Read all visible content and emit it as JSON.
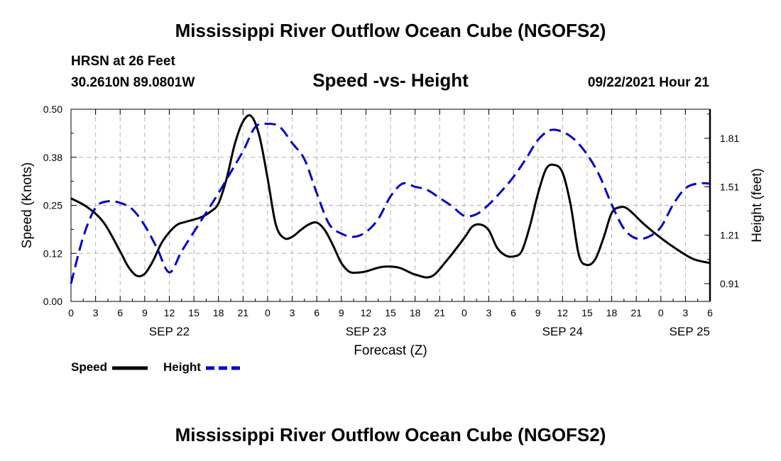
{
  "header": {
    "title": "Mississippi River Outflow Ocean Cube (NGOFS2)",
    "station": "HRSN at 26 Feet",
    "coords": "30.2610N  89.0801W",
    "subtitle": "Speed -vs- Height",
    "datetime": "09/22/2021 Hour 21"
  },
  "footer": {
    "title": "Mississippi River Outflow Ocean Cube (NGOFS2)"
  },
  "legend": {
    "speed_label": "Speed",
    "height_label": "Height"
  },
  "colors": {
    "speed": "#000000",
    "height": "#0000cc",
    "grid": "#b0b0b0"
  },
  "chart_data": {
    "type": "line",
    "title": "Speed -vs- Height",
    "xlabel": "Forecast (Z)",
    "ylabel": "Speed (Knots)",
    "y2label": "Height (feet)",
    "x_ticks": [
      0,
      3,
      6,
      9,
      12,
      15,
      18,
      21,
      24,
      27,
      30,
      33,
      36,
      39,
      42,
      45,
      48,
      51,
      54,
      57,
      60,
      63,
      66,
      69,
      72,
      75,
      78
    ],
    "x_tick_labels": [
      "0",
      "3",
      "6",
      "9",
      "12",
      "15",
      "18",
      "21",
      "0",
      "3",
      "6",
      "9",
      "12",
      "15",
      "18",
      "21",
      "0",
      "3",
      "6",
      "9",
      "12",
      "15",
      "18",
      "21",
      "0",
      "3",
      "6"
    ],
    "date_labels": [
      {
        "x": 12,
        "label": "SEP 22"
      },
      {
        "x": 36,
        "label": "SEP 23"
      },
      {
        "x": 60,
        "label": "SEP 24"
      },
      {
        "x": 78,
        "label": "SEP 25"
      }
    ],
    "xlim": [
      0,
      78
    ],
    "ylim": [
      0,
      0.5
    ],
    "y_ticks": [
      0.0,
      0.125,
      0.25,
      0.375,
      0.5
    ],
    "y_tick_labels": [
      "0.00",
      "0.12",
      "0.25",
      "0.38",
      "0.50"
    ],
    "y2lim": [
      0.8,
      1.99
    ],
    "y2_ticks": [
      0.91,
      1.21,
      1.51,
      1.81
    ],
    "y2_tick_labels": [
      "0.91",
      "1.21",
      "1.51",
      "1.81"
    ],
    "series": [
      {
        "name": "Speed",
        "axis": "left",
        "style": "solid",
        "x": [
          0,
          2,
          4,
          6,
          7,
          8,
          9,
          10,
          11,
          12,
          13,
          14,
          15,
          16,
          17,
          18,
          19,
          20,
          21,
          22,
          23,
          24,
          25,
          26,
          27,
          28,
          29,
          30,
          31,
          32,
          33,
          34,
          35,
          36,
          38,
          40,
          42,
          44,
          46,
          48,
          49,
          50,
          51,
          52,
          53,
          54,
          55,
          56,
          57,
          58,
          59,
          60,
          61,
          62,
          63,
          64,
          65,
          66,
          67,
          68,
          70,
          72,
          74,
          76,
          78
        ],
        "values": [
          0.268,
          0.245,
          0.205,
          0.13,
          0.09,
          0.067,
          0.072,
          0.105,
          0.15,
          0.18,
          0.2,
          0.207,
          0.213,
          0.22,
          0.233,
          0.255,
          0.32,
          0.41,
          0.468,
          0.482,
          0.43,
          0.32,
          0.2,
          0.165,
          0.168,
          0.185,
          0.2,
          0.205,
          0.185,
          0.145,
          0.1,
          0.077,
          0.075,
          0.078,
          0.09,
          0.088,
          0.07,
          0.065,
          0.11,
          0.165,
          0.195,
          0.2,
          0.185,
          0.14,
          0.12,
          0.117,
          0.13,
          0.195,
          0.28,
          0.345,
          0.355,
          0.335,
          0.25,
          0.12,
          0.095,
          0.11,
          0.165,
          0.23,
          0.245,
          0.24,
          0.2,
          0.165,
          0.135,
          0.11,
          0.1
        ]
      },
      {
        "name": "Height",
        "axis": "right",
        "style": "dashed",
        "x": [
          0,
          1.5,
          3,
          4.5,
          6,
          7.5,
          9,
          10.5,
          12,
          13.5,
          15,
          16.5,
          18,
          19.5,
          21,
          22.5,
          24,
          25.5,
          27,
          28.5,
          30,
          31.5,
          33,
          34.5,
          36,
          37.5,
          39,
          40.5,
          42,
          43.5,
          45,
          46.5,
          48,
          49.5,
          51,
          52.5,
          54,
          55.5,
          57,
          58.5,
          60,
          61.5,
          63,
          64.5,
          66,
          67.5,
          69,
          70.5,
          72,
          73.5,
          75,
          76.5,
          78
        ],
        "values": [
          0.91,
          1.2,
          1.38,
          1.42,
          1.41,
          1.37,
          1.27,
          1.13,
          0.98,
          1.11,
          1.23,
          1.35,
          1.47,
          1.6,
          1.73,
          1.88,
          1.9,
          1.88,
          1.78,
          1.68,
          1.47,
          1.28,
          1.22,
          1.2,
          1.23,
          1.31,
          1.45,
          1.53,
          1.51,
          1.49,
          1.44,
          1.39,
          1.33,
          1.34,
          1.4,
          1.48,
          1.57,
          1.68,
          1.8,
          1.86,
          1.85,
          1.8,
          1.71,
          1.58,
          1.4,
          1.25,
          1.19,
          1.2,
          1.26,
          1.4,
          1.5,
          1.53,
          1.53
        ]
      }
    ]
  }
}
